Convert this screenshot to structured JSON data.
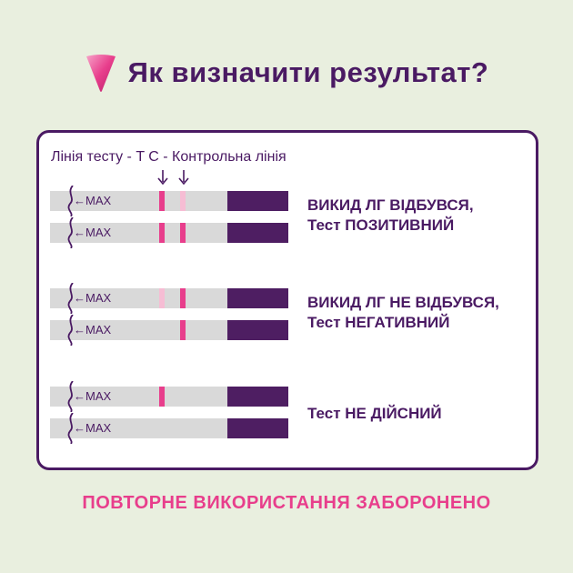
{
  "title": "Як визначити результат?",
  "legend": "Лінія тесту - T  C - Контрольна лінія",
  "strip_label": "MAX",
  "colors": {
    "accent_pink": "#e83e8c",
    "light_pink": "#f6bdd4",
    "dark_purple": "#4a1a63",
    "strip_grey": "#d9d9d9"
  },
  "groups": [
    {
      "result_line1": "ВИКИД ЛГ ВІДБУВСЯ,",
      "result_line2": "Тест ПОЗИТИВНИЙ",
      "strips": [
        {
          "t": "strong",
          "c": "light"
        },
        {
          "t": "strong",
          "c": "strong"
        }
      ]
    },
    {
      "result_line1": "ВИКИД ЛГ НЕ ВІДБУВСЯ,",
      "result_line2": "Тест НЕГАТИВНИЙ",
      "strips": [
        {
          "t": "light",
          "c": "strong"
        },
        {
          "t": "none",
          "c": "strong"
        }
      ]
    },
    {
      "result_line1": "Тест НЕ ДІЙСНИЙ",
      "result_line2": "",
      "strips": [
        {
          "t": "strong",
          "c": "none"
        },
        {
          "t": "none",
          "c": "none"
        }
      ]
    }
  ],
  "footer": "ПОВТОРНЕ ВИКОРИСТАННЯ ЗАБОРОНЕНО"
}
